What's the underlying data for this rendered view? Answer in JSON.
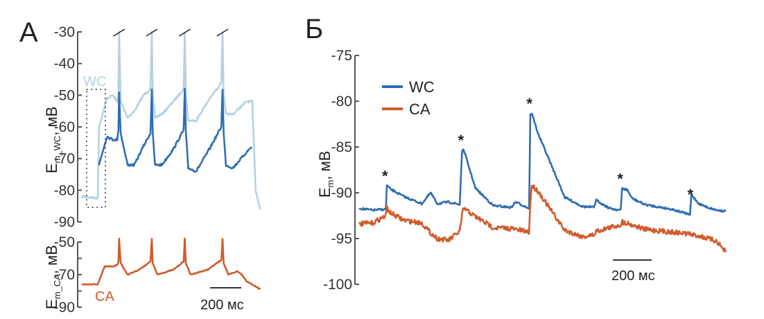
{
  "colors": {
    "wc_light": "#b5d1e3",
    "wc": "#2f6db3",
    "ca": "#d15b2c",
    "axis": "#555555",
    "text": "#222222"
  },
  "chart_data": [
    {
      "id": "A-top",
      "type": "line",
      "panel_label": "А",
      "ylabel": "E",
      "ylabel_sub": "m_WC",
      "ylabel_unit": ", мВ",
      "ylim": [
        -90,
        -30
      ],
      "yticks": [
        -30,
        -40,
        -50,
        -60,
        -70,
        -80,
        -90
      ],
      "ytick_labels": [
        "-30",
        "-40",
        "-50",
        "-60",
        "-70",
        "-80",
        "-90"
      ],
      "annotation": "WC",
      "annotation_note": "dotted rectangle marks the region expanded in panel Б; spike tops truncated (diagonal break marks)",
      "x_ms": [
        0,
        70,
        75,
        110,
        135,
        155,
        160,
        163,
        170,
        200,
        230,
        270,
        300,
        306,
        310,
        320,
        350,
        400,
        445,
        450,
        455,
        465,
        500,
        550,
        610,
        615,
        620,
        630,
        660,
        720,
        745,
        760,
        780
      ],
      "series": [
        {
          "name": "WC (light)",
          "color_key": "wc_light",
          "values": [
            -82,
            -82.5,
            -60,
            -51,
            -50,
            -52,
            -50,
            -30,
            -52,
            -57,
            -55,
            -50,
            -48,
            -30,
            -50,
            -57,
            -56,
            -52,
            -48,
            -30,
            -50,
            -58,
            -58,
            -52,
            -46,
            -30,
            -50,
            -56,
            -56,
            -52,
            -52,
            -80,
            -86
          ]
        },
        {
          "name": "WC (dark)",
          "color_key": "wc",
          "values": [
            null,
            null,
            -72,
            -63,
            -64,
            -64,
            -61,
            -49,
            -62,
            -72,
            -72,
            -66,
            -62,
            -48,
            -62,
            -72,
            -72,
            -67,
            -61,
            -48,
            -62,
            -73,
            -74,
            -68,
            -60,
            -48,
            -62,
            -72,
            -73,
            -68,
            -66,
            null,
            null
          ]
        }
      ],
      "spike_break_marks": 4
    },
    {
      "id": "A-bottom",
      "type": "line",
      "ylabel": "E",
      "ylabel_sub": "m_CA",
      "ylabel_unit": ", мВ",
      "ylim": [
        -90,
        -50
      ],
      "yticks": [
        -50,
        -60,
        -70,
        -80,
        -90
      ],
      "ytick_labels": [
        "-50",
        "",
        "-70",
        "",
        "-90"
      ],
      "annotation": "CA",
      "scalebar_label": "200 мс",
      "scalebar_ms": 200,
      "x_ms": [
        0,
        70,
        100,
        135,
        155,
        160,
        163,
        170,
        200,
        250,
        300,
        306,
        310,
        330,
        400,
        445,
        450,
        455,
        475,
        550,
        610,
        615,
        620,
        640,
        680,
        700,
        720,
        780
      ],
      "series": [
        {
          "name": "CA",
          "color_key": "ca",
          "values": [
            -76,
            -76,
            -65,
            -65,
            -64,
            -62,
            -48,
            -63,
            -70,
            -67,
            -62,
            -48,
            -63,
            -70,
            -67,
            -62,
            -48,
            -63,
            -70,
            -67,
            -61,
            -48,
            -63,
            -70,
            -68,
            -70,
            -74,
            -79
          ]
        }
      ]
    },
    {
      "id": "B",
      "type": "line",
      "panel_label": "Б",
      "ylabel": "E",
      "ylabel_sub": "m",
      "ylabel_unit": ", мВ",
      "ylim": [
        -100,
        -75
      ],
      "yticks": [
        -75,
        -80,
        -85,
        -90,
        -95,
        -100
      ],
      "ytick_labels": [
        "-75",
        "-80",
        "-85",
        "-90",
        "-95",
        "-100"
      ],
      "legend": {
        "position": "top-left",
        "entries": [
          "WC",
          "CA"
        ]
      },
      "scalebar_label": "200 мс",
      "scalebar_ms": 200,
      "markers": "*",
      "marker_x_ms": [
        62,
        232,
        385,
        588,
        745
      ],
      "x_ms": [
        0,
        30,
        60,
        62,
        70,
        100,
        140,
        160,
        175,
        200,
        225,
        230,
        234,
        260,
        300,
        340,
        350,
        380,
        383,
        386,
        400,
        430,
        460,
        500,
        525,
        530,
        560,
        585,
        588,
        600,
        610,
        640,
        700,
        740,
        743,
        760,
        780,
        800,
        820
      ],
      "series": [
        {
          "name": "WC",
          "color_key": "wc",
          "values": [
            -91.7,
            -91.9,
            -91.8,
            -89.2,
            -89.6,
            -90.4,
            -91.2,
            -90.0,
            -91.2,
            -91.0,
            -91.3,
            -85.5,
            -85.3,
            -89.5,
            -91.4,
            -91.6,
            -91.0,
            -91.7,
            -81.5,
            -81.3,
            -83.5,
            -87.0,
            -90.5,
            -91.5,
            -91.6,
            -90.8,
            -91.7,
            -91.9,
            -89.5,
            -89.7,
            -90.6,
            -91.3,
            -91.8,
            -92.4,
            -90.2,
            -91.2,
            -91.6,
            -91.9,
            -92.0
          ]
        },
        {
          "name": "CA",
          "color_key": "ca",
          "values": [
            -93.4,
            -93.3,
            -92.5,
            -91.6,
            -92.2,
            -93.0,
            -93.3,
            -94.4,
            -95.0,
            -95.2,
            -94.2,
            -92.5,
            -91.7,
            -92.6,
            -93.8,
            -93.9,
            -94.0,
            -94.3,
            -91.0,
            -89.2,
            -89.8,
            -92.0,
            -94.1,
            -94.8,
            -94.6,
            -94.2,
            -93.8,
            -93.5,
            -93.2,
            -93.3,
            -93.5,
            -94.0,
            -94.3,
            -94.5,
            -94.6,
            -94.7,
            -95.0,
            -95.3,
            -96.5
          ]
        }
      ]
    }
  ]
}
